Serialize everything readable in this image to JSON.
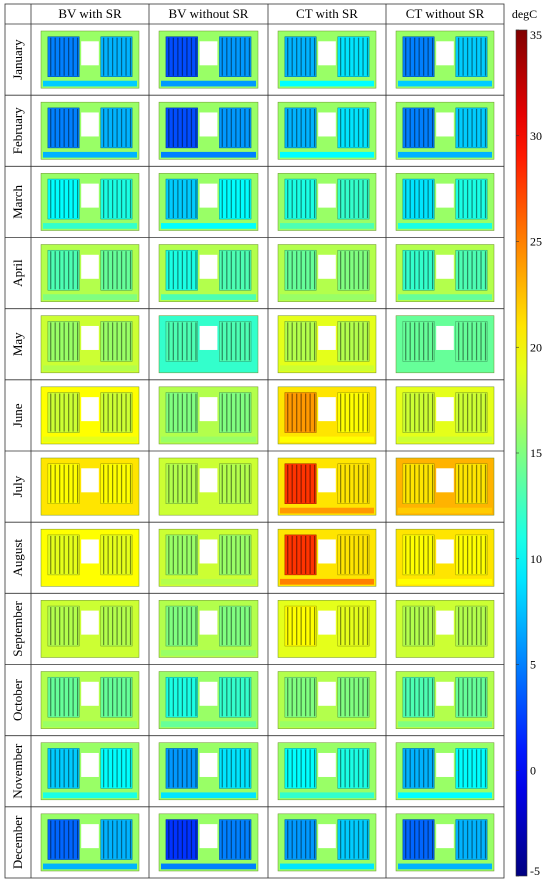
{
  "chart_data": {
    "type": "heatmap",
    "title": "",
    "columns": [
      "BV with SR",
      "BV without SR",
      "CT with SR",
      "CT without SR"
    ],
    "rows": [
      "January",
      "February",
      "March",
      "April",
      "May",
      "June",
      "July",
      "August",
      "September",
      "October",
      "November",
      "December"
    ],
    "colorbar": {
      "unit": "degC",
      "min": -5,
      "max": 35,
      "ticks": [
        35,
        30,
        25,
        20,
        15,
        10,
        5,
        0,
        -5
      ],
      "colormap": "jet",
      "colors": [
        "#00007f",
        "#0000ff",
        "#007fff",
        "#00ffff",
        "#7fff7f",
        "#ffff00",
        "#ff7f00",
        "#ff0000",
        "#7f0000"
      ]
    },
    "cells": [
      {
        "row": "January",
        "column": "BV with SR",
        "background": 16,
        "winding_left": 5,
        "winding_right": 7,
        "yoke": 8
      },
      {
        "row": "January",
        "column": "BV without SR",
        "background": 16,
        "winding_left": 3,
        "winding_right": 6,
        "yoke": 6
      },
      {
        "row": "January",
        "column": "CT with SR",
        "background": 16,
        "winding_left": 7,
        "winding_right": 9,
        "yoke": 10
      },
      {
        "row": "January",
        "column": "CT without SR",
        "background": 16,
        "winding_left": 5,
        "winding_right": 8,
        "yoke": 8
      },
      {
        "row": "February",
        "column": "BV with SR",
        "background": 16,
        "winding_left": 5,
        "winding_right": 7,
        "yoke": 7
      },
      {
        "row": "February",
        "column": "BV without SR",
        "background": 16,
        "winding_left": 3,
        "winding_right": 6,
        "yoke": 5
      },
      {
        "row": "February",
        "column": "CT with SR",
        "background": 16,
        "winding_left": 7,
        "winding_right": 9,
        "yoke": 10
      },
      {
        "row": "February",
        "column": "CT without SR",
        "background": 16,
        "winding_left": 5,
        "winding_right": 8,
        "yoke": 7
      },
      {
        "row": "March",
        "column": "BV with SR",
        "background": 16,
        "winding_left": 10,
        "winding_right": 11,
        "yoke": 12
      },
      {
        "row": "March",
        "column": "BV without SR",
        "background": 16,
        "winding_left": 8,
        "winding_right": 10,
        "yoke": 10
      },
      {
        "row": "March",
        "column": "CT with SR",
        "background": 16,
        "winding_left": 11,
        "winding_right": 12,
        "yoke": 13
      },
      {
        "row": "March",
        "column": "CT without SR",
        "background": 16,
        "winding_left": 9,
        "winding_right": 11,
        "yoke": 11
      },
      {
        "row": "April",
        "column": "BV with SR",
        "background": 17,
        "winding_left": 13,
        "winding_right": 14,
        "yoke": 15
      },
      {
        "row": "April",
        "column": "BV without SR",
        "background": 17,
        "winding_left": 11,
        "winding_right": 13,
        "yoke": 13
      },
      {
        "row": "April",
        "column": "CT with SR",
        "background": 17,
        "winding_left": 14,
        "winding_right": 15,
        "yoke": 16
      },
      {
        "row": "April",
        "column": "CT without SR",
        "background": 17,
        "winding_left": 12,
        "winding_right": 13,
        "yoke": 14
      },
      {
        "row": "May",
        "column": "BV with SR",
        "background": 18,
        "winding_left": 16,
        "winding_right": 16,
        "yoke": 17
      },
      {
        "row": "May",
        "column": "BV without SR",
        "background": 12,
        "winding_left": 13,
        "winding_right": 13,
        "yoke": 12
      },
      {
        "row": "May",
        "column": "CT with SR",
        "background": 19,
        "winding_left": 17,
        "winding_right": 17,
        "yoke": 18
      },
      {
        "row": "May",
        "column": "CT without SR",
        "background": 14,
        "winding_left": 14,
        "winding_right": 14,
        "yoke": 14
      },
      {
        "row": "June",
        "column": "BV with SR",
        "background": 20,
        "winding_left": 18,
        "winding_right": 18,
        "yoke": 19
      },
      {
        "row": "June",
        "column": "BV without SR",
        "background": 17,
        "winding_left": 15,
        "winding_right": 15,
        "yoke": 16
      },
      {
        "row": "June",
        "column": "CT with SR",
        "background": 21,
        "winding_left": 24,
        "winding_right": 20,
        "yoke": 20
      },
      {
        "row": "June",
        "column": "CT without SR",
        "background": 19,
        "winding_left": 18,
        "winding_right": 18,
        "yoke": 18
      },
      {
        "row": "July",
        "column": "BV with SR",
        "background": 21,
        "winding_left": 20,
        "winding_right": 20,
        "yoke": 21
      },
      {
        "row": "July",
        "column": "BV without SR",
        "background": 18,
        "winding_left": 17,
        "winding_right": 17,
        "yoke": 18
      },
      {
        "row": "July",
        "column": "CT with SR",
        "background": 21,
        "winding_left": 28,
        "winding_right": 21,
        "yoke": 24
      },
      {
        "row": "July",
        "column": "CT without SR",
        "background": 23,
        "winding_left": 21,
        "winding_right": 21,
        "yoke": 22
      },
      {
        "row": "August",
        "column": "BV with SR",
        "background": 20,
        "winding_left": 19,
        "winding_right": 19,
        "yoke": 20
      },
      {
        "row": "August",
        "column": "BV without SR",
        "background": 18,
        "winding_left": 16,
        "winding_right": 16,
        "yoke": 17
      },
      {
        "row": "August",
        "column": "CT with SR",
        "background": 21,
        "winding_left": 28,
        "winding_right": 21,
        "yoke": 25
      },
      {
        "row": "August",
        "column": "CT without SR",
        "background": 21,
        "winding_left": 20,
        "winding_right": 20,
        "yoke": 20
      },
      {
        "row": "September",
        "column": "BV with SR",
        "background": 18,
        "winding_left": 17,
        "winding_right": 17,
        "yoke": 18
      },
      {
        "row": "September",
        "column": "BV without SR",
        "background": 17,
        "winding_left": 15,
        "winding_right": 15,
        "yoke": 16
      },
      {
        "row": "September",
        "column": "CT with SR",
        "background": 19,
        "winding_left": 20,
        "winding_right": 19,
        "yoke": 19
      },
      {
        "row": "September",
        "column": "CT without SR",
        "background": 18,
        "winding_left": 17,
        "winding_right": 17,
        "yoke": 18
      },
      {
        "row": "October",
        "column": "BV with SR",
        "background": 17,
        "winding_left": 14,
        "winding_right": 14,
        "yoke": 16
      },
      {
        "row": "October",
        "column": "BV without SR",
        "background": 16,
        "winding_left": 11,
        "winding_right": 12,
        "yoke": 14
      },
      {
        "row": "October",
        "column": "CT with SR",
        "background": 17,
        "winding_left": 15,
        "winding_right": 15,
        "yoke": 16
      },
      {
        "row": "October",
        "column": "CT without SR",
        "background": 17,
        "winding_left": 13,
        "winding_right": 14,
        "yoke": 15
      },
      {
        "row": "November",
        "column": "BV with SR",
        "background": 16,
        "winding_left": 8,
        "winding_right": 10,
        "yoke": 11
      },
      {
        "row": "November",
        "column": "BV without SR",
        "background": 16,
        "winding_left": 6,
        "winding_right": 9,
        "yoke": 9
      },
      {
        "row": "November",
        "column": "CT with SR",
        "background": 16,
        "winding_left": 10,
        "winding_right": 11,
        "yoke": 12
      },
      {
        "row": "November",
        "column": "CT without SR",
        "background": 16,
        "winding_left": 7,
        "winding_right": 10,
        "yoke": 10
      },
      {
        "row": "December",
        "column": "BV with SR",
        "background": 16,
        "winding_left": 4,
        "winding_right": 7,
        "yoke": 7
      },
      {
        "row": "December",
        "column": "BV without SR",
        "background": 16,
        "winding_left": 2,
        "winding_right": 5,
        "yoke": 5
      },
      {
        "row": "December",
        "column": "CT with SR",
        "background": 16,
        "winding_left": 6,
        "winding_right": 8,
        "yoke": 9
      },
      {
        "row": "December",
        "column": "CT without SR",
        "background": 16,
        "winding_left": 4,
        "winding_right": 7,
        "yoke": 7
      }
    ]
  }
}
